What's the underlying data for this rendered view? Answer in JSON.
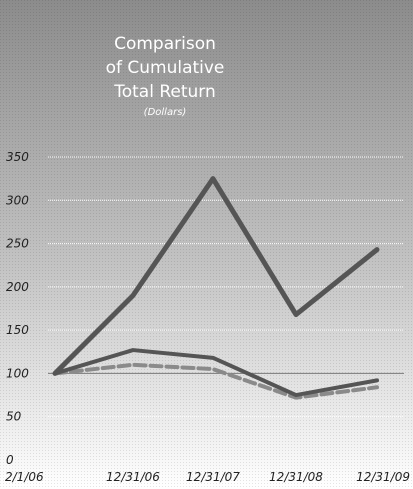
{
  "chart_data": {
    "type": "line",
    "title_lines": [
      "Comparison",
      "of Cumulative",
      "Total Return"
    ],
    "subtitle": "(Dollars)",
    "categories": [
      "2/1/06",
      "12/31/06",
      "12/31/07",
      "12/31/08",
      "12/31/09"
    ],
    "y_ticks": [
      "0",
      "50",
      "100",
      "150",
      "200",
      "250",
      "300",
      "350"
    ],
    "ylim": [
      0,
      350
    ],
    "grid": true,
    "series": [
      {
        "values": [
          100,
          190,
          325,
          168,
          243
        ],
        "style": "solid-thick",
        "color": "#555555"
      },
      {
        "values": [
          100,
          127,
          118,
          75,
          92
        ],
        "style": "solid",
        "color": "#555555"
      },
      {
        "values": [
          100,
          110,
          105,
          72,
          84
        ],
        "style": "dashed",
        "color": "#8a8a8a"
      }
    ],
    "colors": {
      "gradient_top": "#8c8c8c",
      "gradient_bottom": "#ffffff",
      "grid": "#ffffff"
    }
  }
}
